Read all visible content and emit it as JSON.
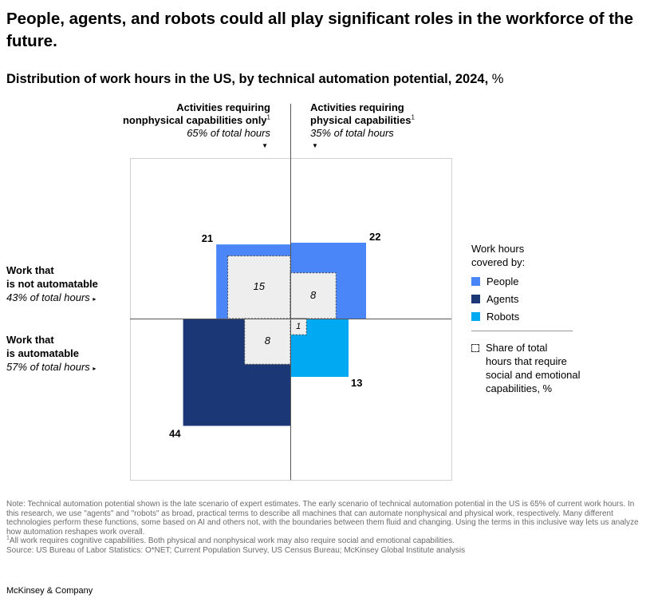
{
  "title": "People, agents, and robots could all play significant roles in the workforce of the future.",
  "subtitle": "Distribution of work hours in the US, by technical automation potential, 2024,",
  "subtitle_unit": "%",
  "columns": {
    "nonphysical": {
      "line1": "Activities requiring",
      "line2": "nonphysical capabilities only",
      "footnote_mark": "1",
      "share": "65% of total hours",
      "arrow": "▼"
    },
    "physical": {
      "line1": "Activities requiring",
      "line2": "physical capabilities",
      "footnote_mark": "1",
      "share": "35% of total hours",
      "arrow": "▼"
    }
  },
  "rows": {
    "not_automatable": {
      "line1": "Work that",
      "line2": "is not automatable",
      "share": "43% of total hours",
      "arrow": "▸"
    },
    "automatable": {
      "line1": "Work that",
      "line2": "is automatable",
      "share": "57% of total hours",
      "arrow": "▸"
    }
  },
  "legend": {
    "title_line1": "Work hours",
    "title_line2": "covered by:",
    "items": [
      {
        "label": "People",
        "color": "#4a86f7"
      },
      {
        "label": "Agents",
        "color": "#1c3776"
      },
      {
        "label": "Robots",
        "color": "#00a9f2"
      }
    ],
    "social_line1": "Share of total",
    "social_line2": "hours that require",
    "social_line3": "social and emotional",
    "social_line4": "capabilities, %"
  },
  "chart_data": {
    "type": "quadrant-area",
    "title": "Distribution of work hours in the US, by technical automation potential, 2024, %",
    "x_categories": [
      "Activities requiring nonphysical capabilities only (65% of total hours)",
      "Activities requiring physical capabilities (35% of total hours)"
    ],
    "y_categories": [
      "Work that is not automatable (43% of total hours)",
      "Work that is automatable (57% of total hours)"
    ],
    "cells": [
      {
        "quadrant": "nonphysical-not-automatable",
        "covered_by": "People",
        "value": 21,
        "social_emotional_share": 15,
        "color": "#4a86f7"
      },
      {
        "quadrant": "physical-not-automatable",
        "covered_by": "People",
        "value": 22,
        "social_emotional_share": 8,
        "color": "#4a86f7"
      },
      {
        "quadrant": "nonphysical-automatable",
        "covered_by": "Agents",
        "value": 44,
        "social_emotional_share": 8,
        "color": "#1c3776"
      },
      {
        "quadrant": "physical-automatable",
        "covered_by": "Robots",
        "value": 13,
        "social_emotional_share": 1,
        "color": "#00a9f2"
      }
    ]
  },
  "notes": {
    "note": "Note: Technical automation potential shown is the late scenario of expert estimates. The early scenario of technical automation potential in the US is 65% of current work hours. In this research, we use \"agents\" and \"robots\" as broad, practical terms to describe all machines that can automate nonphysical and physical work, respectively. Many different technologies perform these functions, some based on AI and others not, with the boundaries between them fluid and changing. Using the terms in this inclusive way lets us analyze how automation reshapes work overall.",
    "footnote_mark": "1",
    "footnote": "All work requires cognitive capabilities. Both physical and nonphysical work may also require social and emotional capabilities.",
    "source": "Source: US Bureau of Labor Statistics: O*NET; Current Population Survey, US Census Bureau; McKinsey Global Institute analysis"
  },
  "footer": "McKinsey & Company"
}
